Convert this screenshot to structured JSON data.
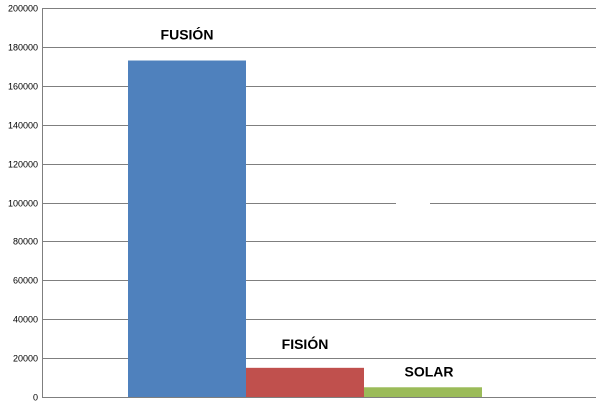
{
  "chart_data": {
    "type": "bar",
    "categories": [
      "FUSIÓN",
      "FISIÓN",
      "SOLAR"
    ],
    "values": [
      173000,
      15000,
      5000
    ],
    "colors": [
      "#4f81bd",
      "#c0504d",
      "#9bbb59"
    ],
    "ylim": [
      0,
      200000
    ],
    "yticks": [
      "0",
      "20000",
      "40000",
      "60000",
      "80000",
      "100000",
      "120000",
      "140000",
      "160000",
      "180000",
      "200000"
    ],
    "title": "",
    "xlabel": "",
    "ylabel": "",
    "grid": true,
    "legend": "none"
  }
}
